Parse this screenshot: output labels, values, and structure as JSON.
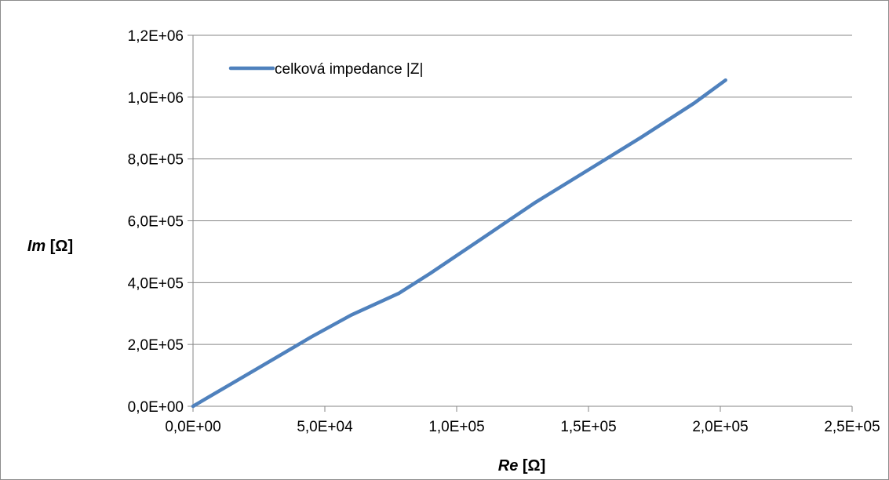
{
  "chart_data": {
    "type": "line",
    "title": "",
    "xlabel": {
      "italic": "Re",
      "rest": " [Ω]"
    },
    "ylabel": {
      "italic": "Im",
      "rest": " [Ω]"
    },
    "xlim": [
      0,
      250000
    ],
    "ylim": [
      0,
      1200000
    ],
    "x_ticks": [
      0,
      50000,
      100000,
      150000,
      200000,
      250000
    ],
    "x_tick_labels": [
      "0,0E+00",
      "5,0E+04",
      "1,0E+05",
      "1,5E+05",
      "2,0E+05",
      "2,5E+05"
    ],
    "y_ticks": [
      0,
      200000,
      400000,
      600000,
      800000,
      1000000,
      1200000
    ],
    "y_tick_labels": [
      "0,0E+00",
      "2,0E+05",
      "4,0E+05",
      "6,0E+05",
      "8,0E+05",
      "1,0E+06",
      "1,2E+06"
    ],
    "grid": "horizontal",
    "legend_position": "top-left",
    "series": [
      {
        "name": "celková impedance |Z|",
        "color": "#4f81bd",
        "x": [
          0,
          5000,
          15000,
          30000,
          45000,
          60000,
          78000,
          90000,
          110000,
          130000,
          150000,
          170000,
          190000,
          202000
        ],
        "y": [
          0,
          25000,
          75000,
          150000,
          225000,
          295000,
          365000,
          430000,
          545000,
          660000,
          765000,
          870000,
          980000,
          1055000
        ]
      }
    ]
  }
}
